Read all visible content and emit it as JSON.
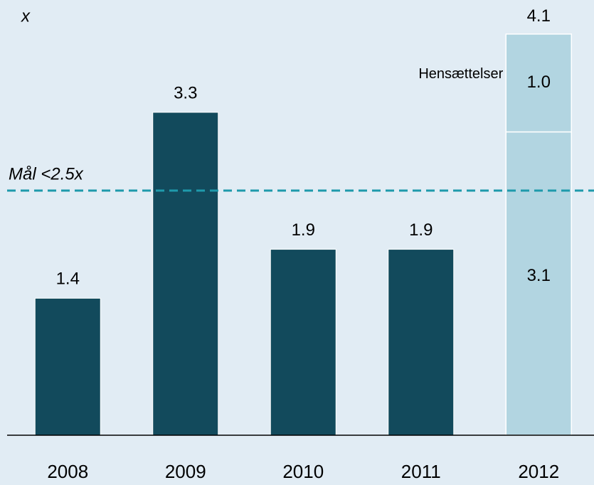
{
  "chart_data": {
    "type": "bar",
    "y_label": "x",
    "categories": [
      "2008",
      "2009",
      "2010",
      "2011",
      "2012"
    ],
    "series": [
      {
        "colors": [
          "#124a5c",
          "#124a5c",
          "#124a5c",
          "#124a5c",
          "#b2d5e1"
        ],
        "values": [
          1.4,
          3.3,
          1.9,
          1.9,
          3.1
        ]
      },
      {
        "name": "Hensættelser",
        "color": "#b2d5e1",
        "values": [
          null,
          null,
          null,
          null,
          1.0
        ],
        "value_labels": [
          null,
          null,
          null,
          null,
          "1.0"
        ]
      }
    ],
    "annotations": [
      {
        "text": "4.1",
        "category": "2012"
      }
    ],
    "reference_line": {
      "value": 2.5,
      "label": "Mål <2.5x",
      "color": "#1e9aab"
    },
    "ylim": [
      0,
      4.4
    ]
  }
}
